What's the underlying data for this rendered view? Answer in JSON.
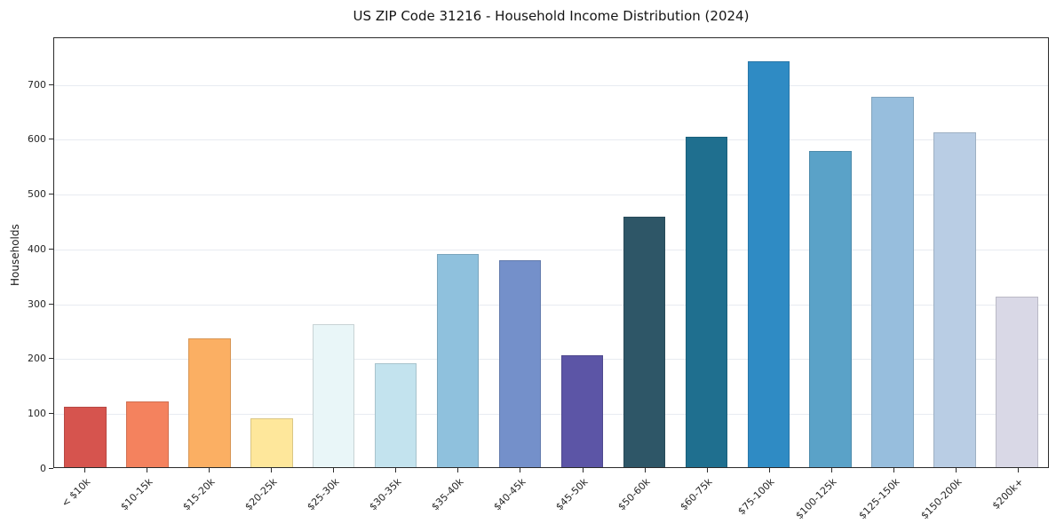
{
  "chart_data": {
    "type": "bar",
    "title": "US ZIP Code 31216 - Household Income Distribution (2024)",
    "xlabel": "",
    "ylabel": "Households",
    "ylim": [
      0,
      785
    ],
    "yticks": [
      0,
      100,
      200,
      300,
      400,
      500,
      600,
      700
    ],
    "grid": true,
    "legend": false,
    "categories": [
      "< $10k",
      "$10-15k",
      "$15-20k",
      "$20-25k",
      "$25-30k",
      "$30-35k",
      "$35-40k",
      "$40-45k",
      "$45-50k",
      "$50-60k",
      "$60-75k",
      "$75-100k",
      "$100-125k",
      "$125-150k",
      "$150-200k",
      "$200k+"
    ],
    "values": [
      110,
      120,
      235,
      90,
      262,
      190,
      390,
      378,
      205,
      458,
      605,
      742,
      578,
      678,
      612,
      312
    ],
    "bar_colors": [
      "#d6544e",
      "#f4825e",
      "#fbaf63",
      "#fee79b",
      "#e9f6f8",
      "#c3e3ee",
      "#8fc1dd",
      "#7490ca",
      "#5c55a6",
      "#2e5667",
      "#1f6f8f",
      "#2f8bc4",
      "#5aa2c8",
      "#97bedd",
      "#b9cde4",
      "#d9d8e6"
    ]
  }
}
